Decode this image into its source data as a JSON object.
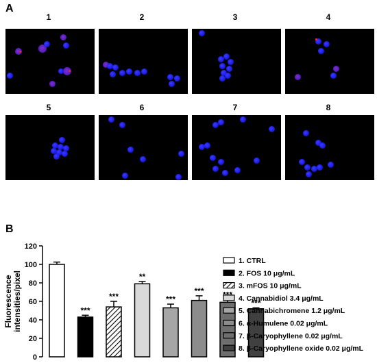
{
  "panel_a": {
    "letter": "A",
    "images": [
      {
        "label": "1"
      },
      {
        "label": "2"
      },
      {
        "label": "3"
      },
      {
        "label": "4"
      },
      {
        "label": "5"
      },
      {
        "label": "6"
      },
      {
        "label": "7"
      },
      {
        "label": "8"
      }
    ]
  },
  "panel_b": {
    "letter": "B"
  },
  "chart_data": {
    "type": "bar",
    "title": "",
    "ylabel": "Fluorescence\nintensities/pixel",
    "xlabel": "",
    "ylim": [
      0,
      120
    ],
    "yticks": [
      0,
      20,
      40,
      60,
      80,
      100,
      120
    ],
    "categories": [
      "1. CTRL",
      "2. FOS 10 μg/mL",
      "3. mFOS 10 μg/mL",
      "4. Cannabidiol 3.4 μg/mL",
      "5. Cannabichromene 1.2 μg/mL",
      "6. α-Humulene 0.02 μg/mL",
      "7. β-Caryophyllene 0.02 μg/mL",
      "8. β-Caryophyllene oxide 0.02 μg/mL"
    ],
    "values": [
      100,
      43,
      54,
      79,
      53,
      61,
      59,
      52
    ],
    "errors": [
      2.5,
      2,
      6,
      2.5,
      4,
      5,
      3,
      1
    ],
    "significance": [
      "",
      "***",
      "***",
      "**",
      "***",
      "***",
      "***",
      "***"
    ],
    "fills": [
      "#ffffff",
      "#000000",
      "hatch",
      "#d9d9d9",
      "#a6a6a6",
      "#8c8c8c",
      "#6e6e6e",
      "#404040"
    ],
    "legend_position": "right",
    "grid": false
  }
}
